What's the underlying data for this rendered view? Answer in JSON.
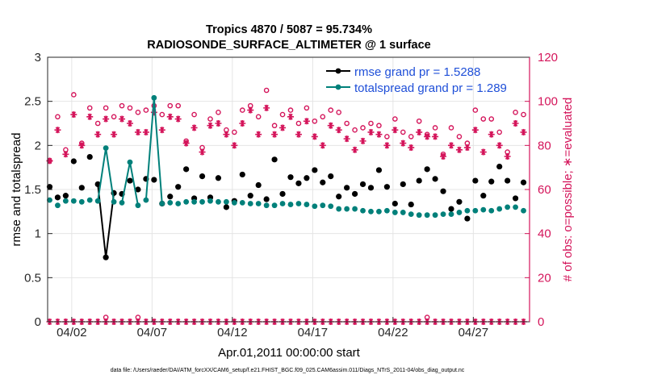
{
  "chart_data": {
    "type": "line",
    "title": "Tropics 4870 / 5087 = 95.734%",
    "subtitle": "RADIOSONDE_SURFACE_ALTIMETER @ 1 surface",
    "xlabel": "Apr.01,2011 00:00:00 start",
    "ylabel": "rmse and totalspread",
    "y2label": "# of obs: o=possible; ∗=evaluated",
    "footnote": "data file: /Users/raeder/DAI/ATM_forcXX/CAM6_setup/f.e21.FHIST_BGC.f09_025.CAM6assim.011/Diags_NTrS_2011-04/obs_diag_output.nc",
    "xlim": [
      0.5,
      30.5
    ],
    "ylim": [
      0,
      3
    ],
    "y2lim": [
      0,
      120
    ],
    "x_ticks": [
      2,
      7,
      12,
      17,
      22,
      27
    ],
    "x_tick_labels": [
      "04/02",
      "04/07",
      "04/12",
      "04/17",
      "04/22",
      "04/27"
    ],
    "y_ticks": [
      0,
      0.5,
      1,
      1.5,
      2,
      2.5,
      3
    ],
    "y_tick_labels": [
      "0",
      "0.5",
      "1",
      "1.5",
      "2",
      "2.5",
      "3"
    ],
    "y2_ticks": [
      0,
      20,
      40,
      60,
      80,
      100,
      120
    ],
    "y2_tick_labels": [
      "0",
      "20",
      "40",
      "60",
      "80",
      "100",
      "120"
    ],
    "legend": [
      "rmse grand pr = 1.5288",
      "totalspread grand pr = 1.289"
    ],
    "colors": {
      "rmse": "#000000",
      "spread": "#00807a",
      "obs": "#d4145a",
      "grid": "#e4e4e4"
    },
    "x": [
      0.625,
      1.125,
      1.625,
      2.125,
      2.625,
      3.125,
      3.625,
      4.125,
      4.625,
      5.125,
      5.625,
      6.125,
      6.625,
      7.125,
      7.625,
      8.125,
      8.625,
      9.125,
      9.625,
      10.125,
      10.625,
      11.125,
      11.625,
      12.125,
      12.625,
      13.125,
      13.625,
      14.125,
      14.625,
      15.125,
      15.625,
      16.125,
      16.625,
      17.125,
      17.625,
      18.125,
      18.625,
      19.125,
      19.625,
      20.125,
      20.625,
      21.125,
      21.625,
      22.125,
      22.625,
      23.125,
      23.625,
      24.125,
      24.625,
      25.125,
      25.625,
      26.125,
      26.625,
      27.125,
      27.625,
      28.125,
      28.625,
      29.125,
      29.625,
      30.125
    ],
    "series": [
      {
        "name": "rmse",
        "values": [
          1.53,
          1.41,
          1.43,
          1.82,
          1.52,
          1.87,
          1.56,
          0.73,
          1.46,
          1.45,
          1.6,
          1.5,
          1.62,
          1.61,
          1.34,
          1.42,
          1.53,
          1.73,
          1.4,
          1.65,
          1.41,
          1.63,
          1.3,
          1.37,
          1.67,
          1.43,
          1.55,
          1.39,
          1.84,
          1.45,
          1.64,
          1.57,
          1.63,
          1.72,
          1.58,
          1.65,
          1.42,
          1.52,
          1.45,
          1.56,
          1.52,
          1.72,
          1.53,
          1.34,
          1.56,
          1.33,
          1.6,
          1.73,
          1.62,
          1.48,
          1.28,
          1.36,
          1.17,
          1.6,
          1.43,
          1.59,
          1.76,
          1.6,
          1.4,
          1.58
        ]
      },
      {
        "name": "totalspread",
        "values": [
          1.38,
          1.32,
          1.37,
          1.37,
          1.36,
          1.38,
          1.37,
          1.97,
          1.36,
          1.35,
          1.81,
          1.32,
          1.38,
          2.54,
          1.34,
          1.35,
          1.34,
          1.36,
          1.36,
          1.36,
          1.37,
          1.36,
          1.36,
          1.35,
          1.35,
          1.34,
          1.34,
          1.32,
          1.32,
          1.34,
          1.33,
          1.34,
          1.33,
          1.31,
          1.32,
          1.31,
          1.28,
          1.28,
          1.28,
          1.26,
          1.25,
          1.25,
          1.26,
          1.24,
          1.24,
          1.22,
          1.21,
          1.21,
          1.21,
          1.22,
          1.22,
          1.24,
          1.26,
          1.26,
          1.27,
          1.26,
          1.28,
          1.3,
          1.3,
          1.26
        ]
      },
      {
        "name": "possible",
        "axis": "right",
        "values": [
          73,
          93,
          78,
          103,
          81,
          97,
          90,
          97,
          93,
          98,
          97,
          95,
          96,
          98,
          94,
          98,
          98,
          82,
          94,
          79,
          92,
          95,
          87,
          86,
          96,
          98,
          93,
          105,
          89,
          94,
          96,
          90,
          97,
          91,
          93,
          96,
          95,
          90,
          87,
          88,
          90,
          89,
          84,
          92,
          86,
          84,
          91,
          85,
          88,
          76,
          88,
          84,
          81,
          96,
          92,
          92,
          86,
          77,
          95,
          94
        ]
      },
      {
        "name": "evaluated",
        "axis": "right",
        "values": [
          73,
          87,
          76,
          94,
          80,
          93,
          85,
          92,
          85,
          92,
          90,
          86,
          86,
          95,
          87,
          93,
          92,
          81,
          88,
          77,
          89,
          90,
          85,
          80,
          90,
          96,
          85,
          97,
          85,
          88,
          93,
          85,
          91,
          84,
          80,
          89,
          87,
          83,
          78,
          82,
          86,
          85,
          80,
          87,
          81,
          79,
          86,
          84,
          84,
          75,
          80,
          78,
          79,
          87,
          77,
          85,
          80,
          75,
          90,
          86
        ]
      },
      {
        "name": "possible_low",
        "axis": "right",
        "values": [
          0,
          0,
          0,
          0,
          0,
          0,
          0,
          2,
          0,
          0,
          0,
          2,
          0,
          0,
          0,
          0,
          0,
          0,
          0,
          0,
          0,
          0,
          0,
          0,
          0,
          0,
          0,
          0,
          0,
          0,
          0,
          0,
          0,
          0,
          0,
          0,
          0,
          0,
          0,
          0,
          0,
          0,
          0,
          0,
          0,
          0,
          0,
          2,
          0,
          0,
          0,
          0,
          0,
          0,
          0,
          0,
          0,
          0,
          0,
          0
        ]
      }
    ]
  }
}
